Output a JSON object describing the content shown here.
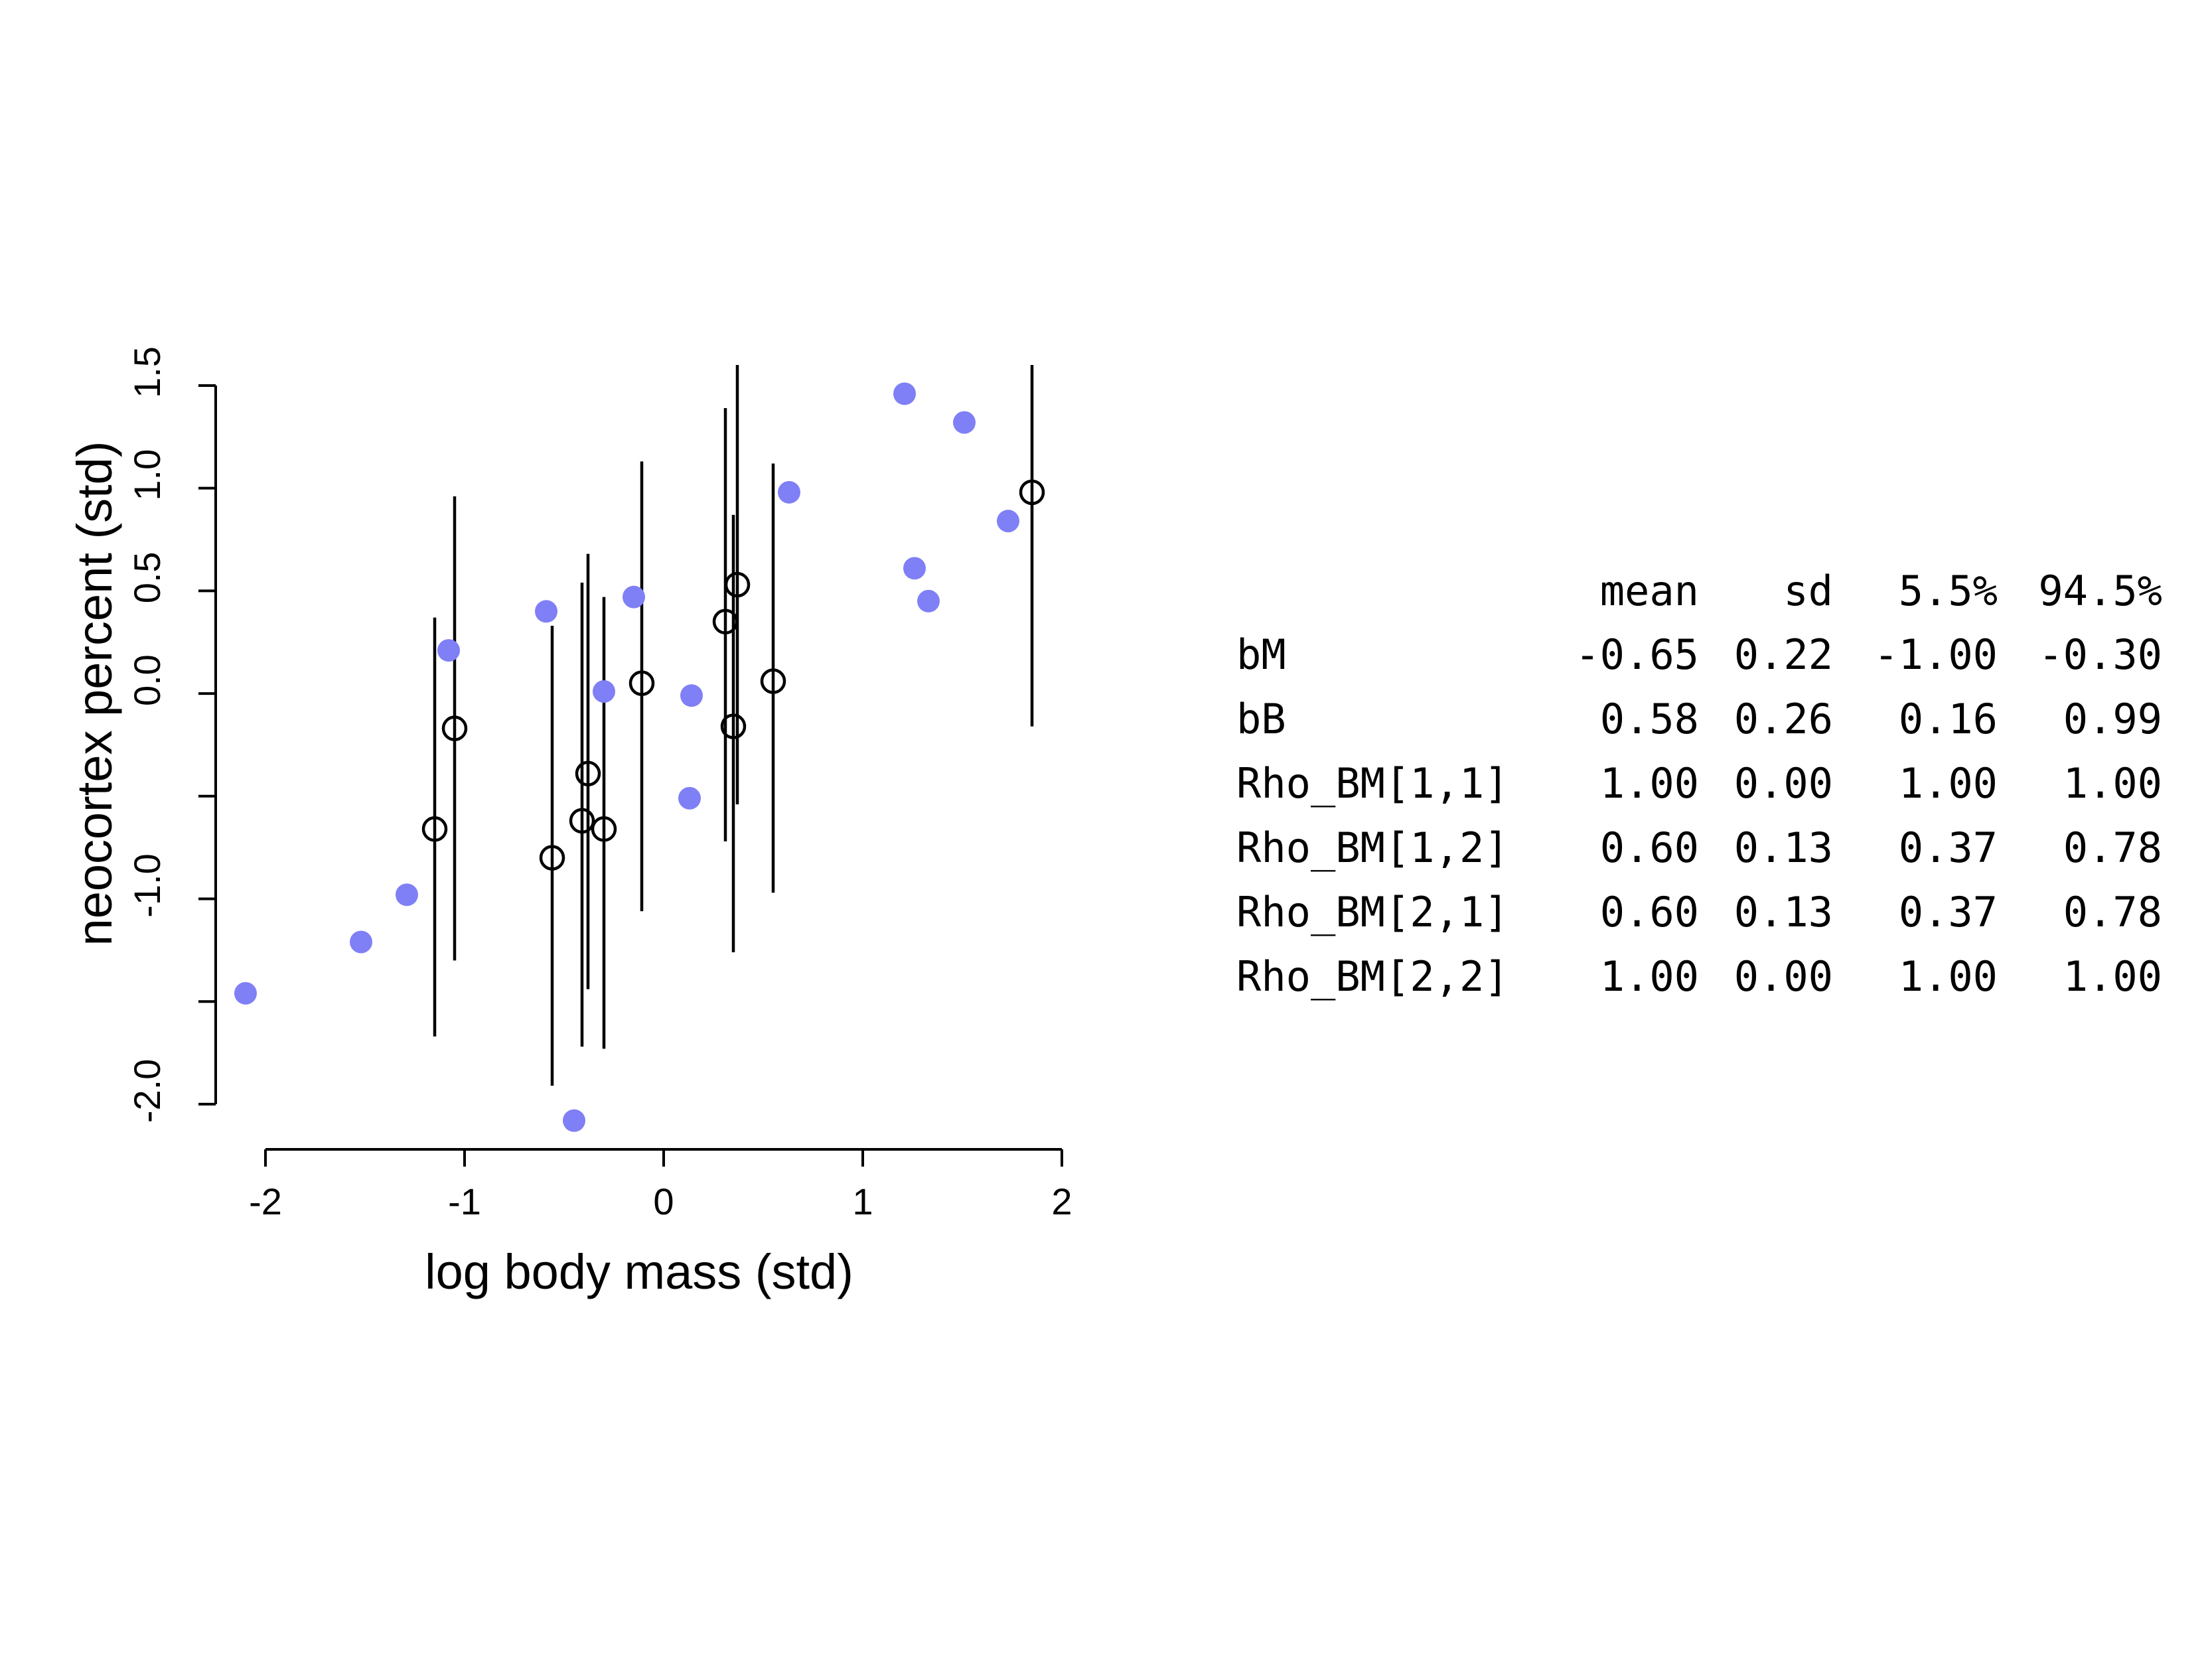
{
  "chart_data": {
    "type": "scatter",
    "xlabel": "log body mass (std)",
    "ylabel": "neocortex percent (std)",
    "xlim": [
      -2.25,
      2.0
    ],
    "ylim": [
      -2.22,
      1.6
    ],
    "x_ticks": [
      -2,
      -1,
      0,
      1,
      2
    ],
    "x_tick_labels": [
      "-2",
      "-1",
      "0",
      "1",
      "2"
    ],
    "y_ticks": [
      -2.0,
      -1.5,
      -1.0,
      -0.5,
      0.0,
      0.5,
      1.0,
      1.5
    ],
    "y_tick_labels": [
      "-2.0",
      "",
      "-1.0",
      "",
      "0.0",
      "0.5",
      "1.0",
      "1.5"
    ],
    "grid": false,
    "colors": {
      "observed": "#7f7ff6",
      "imputed": "#000000"
    },
    "series": [
      {
        "marker": "filled-circle",
        "points": [
          {
            "x": -2.1,
            "y": -1.46
          },
          {
            "x": -1.52,
            "y": -1.21
          },
          {
            "x": -1.29,
            "y": -0.98
          },
          {
            "x": -1.08,
            "y": 0.21
          },
          {
            "x": -0.59,
            "y": 0.4
          },
          {
            "x": -0.45,
            "y": -2.08
          },
          {
            "x": -0.3,
            "y": 0.01
          },
          {
            "x": -0.15,
            "y": 0.47
          },
          {
            "x": 0.13,
            "y": -0.51
          },
          {
            "x": 0.14,
            "y": -0.01
          },
          {
            "x": 0.63,
            "y": 0.98
          },
          {
            "x": 1.21,
            "y": 1.46
          },
          {
            "x": 1.26,
            "y": 0.61
          },
          {
            "x": 1.33,
            "y": 0.45
          },
          {
            "x": 1.51,
            "y": 1.32
          },
          {
            "x": 1.73,
            "y": 0.84
          }
        ]
      },
      {
        "marker": "open-circle",
        "points": [
          {
            "x": -1.15,
            "y": -0.66,
            "lo": -1.67,
            "hi": 0.37
          },
          {
            "x": -1.05,
            "y": -0.17,
            "lo": -1.3,
            "hi": 0.96
          },
          {
            "x": -0.56,
            "y": -0.8,
            "lo": -1.91,
            "hi": 0.33
          },
          {
            "x": -0.41,
            "y": -0.62,
            "lo": -1.72,
            "hi": 0.54
          },
          {
            "x": -0.38,
            "y": -0.39,
            "lo": -1.44,
            "hi": 0.68
          },
          {
            "x": -0.3,
            "y": -0.66,
            "lo": -1.73,
            "hi": 0.47
          },
          {
            "x": -0.11,
            "y": 0.05,
            "lo": -1.06,
            "hi": 1.13
          },
          {
            "x": 0.31,
            "y": 0.35,
            "lo": -0.72,
            "hi": 1.39
          },
          {
            "x": 0.35,
            "y": -0.16,
            "lo": -1.26,
            "hi": 0.87
          },
          {
            "x": 0.37,
            "y": 0.53,
            "lo": -0.54,
            "hi": 1.6
          },
          {
            "x": 0.55,
            "y": 0.06,
            "lo": -0.97,
            "hi": 1.12
          },
          {
            "x": 1.85,
            "y": 0.98,
            "lo": -0.16,
            "hi": 1.6
          }
        ]
      }
    ]
  },
  "summary_table": {
    "headers": [
      "mean",
      "sd",
      "5.5%",
      "94.5%"
    ],
    "rows": [
      {
        "name": "bM",
        "values": [
          "-0.65",
          "0.22",
          "-1.00",
          "-0.30"
        ]
      },
      {
        "name": "bB",
        "values": [
          "0.58",
          "0.26",
          "0.16",
          "0.99"
        ]
      },
      {
        "name": "Rho_BM[1,1]",
        "values": [
          "1.00",
          "0.00",
          "1.00",
          "1.00"
        ]
      },
      {
        "name": "Rho_BM[1,2]",
        "values": [
          "0.60",
          "0.13",
          "0.37",
          "0.78"
        ]
      },
      {
        "name": "Rho_BM[2,1]",
        "values": [
          "0.60",
          "0.13",
          "0.37",
          "0.78"
        ]
      },
      {
        "name": "Rho_BM[2,2]",
        "values": [
          "1.00",
          "0.00",
          "1.00",
          "1.00"
        ]
      }
    ]
  }
}
